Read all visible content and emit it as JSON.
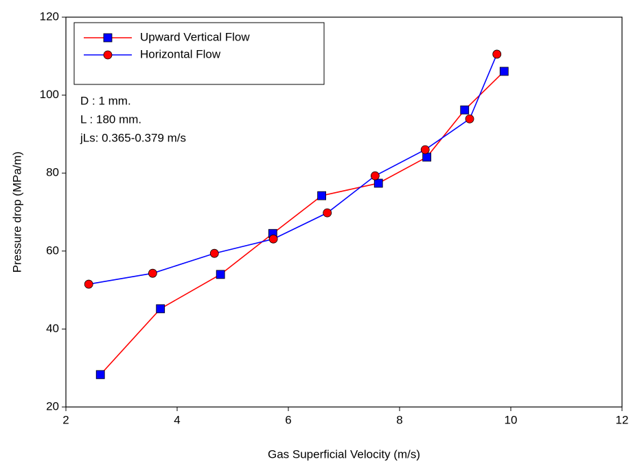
{
  "chart_data": {
    "type": "line",
    "xlabel": "Gas Superficial Velocity (m/s)",
    "ylabel": "Pressure drop (MPa/m)",
    "xlim": [
      2,
      12
    ],
    "xticks": [
      2,
      4,
      6,
      8,
      10,
      12
    ],
    "ylim": [
      20,
      120
    ],
    "yticks": [
      20,
      40,
      60,
      80,
      100,
      120
    ],
    "legend": "upper left",
    "annotations": [
      "D : 1 mm.",
      "L : 180 mm.",
      "jLs: 0.365-0.379 m/s"
    ],
    "series": [
      {
        "name": "Upward Vertical Flow",
        "color": "#ff0000",
        "marker": "square",
        "marker_color": "#0000ff",
        "x": [
          2.62,
          3.7,
          4.78,
          5.72,
          6.6,
          7.62,
          8.49,
          9.17,
          9.88
        ],
        "values": [
          28.3,
          45.2,
          54.0,
          64.5,
          74.2,
          77.4,
          84.1,
          96.2,
          106.1
        ]
      },
      {
        "name": "Horizontal Flow",
        "color": "#0000ff",
        "marker": "circle",
        "marker_color": "#ff0000",
        "x": [
          2.41,
          3.56,
          4.67,
          5.73,
          6.7,
          7.56,
          8.46,
          9.26,
          9.75
        ],
        "values": [
          51.5,
          54.3,
          59.4,
          63.1,
          69.8,
          79.3,
          86.0,
          93.9,
          110.5
        ]
      }
    ]
  }
}
